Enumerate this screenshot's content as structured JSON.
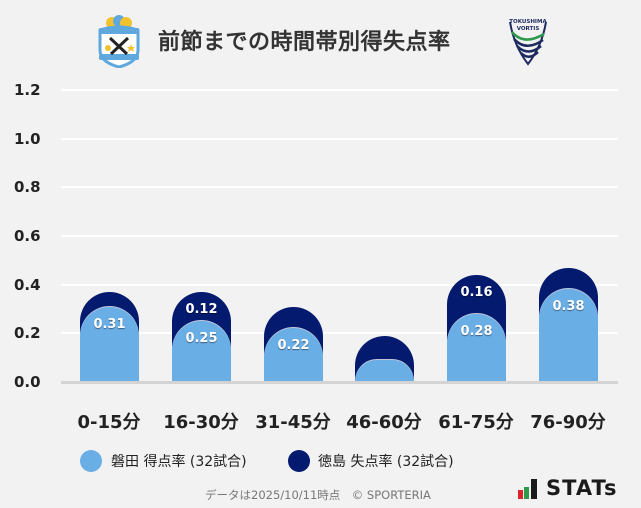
{
  "header": {
    "title": "前節までの時間帯別得失点率",
    "left_logo": "jubilo-iwata-crest-icon",
    "right_logo": "tokushima-vortis-crest-icon",
    "right_logo_text": [
      "TOKUSHIMA",
      "VORTIS"
    ]
  },
  "colors": {
    "background": "#f2f2f2",
    "iwata_scored": "#6aaee6",
    "tokushima_conceded": "#031a6e",
    "gridline": "#ffffff",
    "text": "#222222"
  },
  "legend": {
    "items": [
      {
        "label": "磐田 得点率 (32試合)",
        "color": "#6aaee6"
      },
      {
        "label": "徳島 失点率 (32試合)",
        "color": "#031a6e"
      }
    ]
  },
  "footer": {
    "note": "データは2025/10/11時点　© SPORTERIA",
    "brand": "STATs"
  },
  "chart_data": {
    "type": "bar",
    "stacked": true,
    "title": "前節までの時間帯別得失点率",
    "xlabel": "",
    "ylabel": "",
    "ylim": [
      0,
      1.2
    ],
    "yticks": [
      "0.0",
      "0.2",
      "0.4",
      "0.6",
      "0.8",
      "1.0",
      "1.2"
    ],
    "grid": true,
    "legend_position": "bottom",
    "categories": [
      "0-15分",
      "16-30分",
      "31-45分",
      "46-60分",
      "61-75分",
      "76-90分"
    ],
    "series": [
      {
        "name": "磐田 得点率 (32試合)",
        "color": "#6aaee6",
        "values": [
          0.31,
          0.25,
          0.22,
          0.09,
          0.28,
          0.38
        ],
        "labels": [
          "0.31",
          "0.25",
          "0.22",
          "",
          "0.28",
          "0.38"
        ]
      },
      {
        "name": "徳島 失点率 (32試合)",
        "color": "#031a6e",
        "values": [
          0.06,
          0.12,
          0.09,
          0.1,
          0.16,
          0.09
        ],
        "labels": [
          "",
          "0.12",
          "",
          "",
          "0.16",
          ""
        ]
      }
    ]
  }
}
